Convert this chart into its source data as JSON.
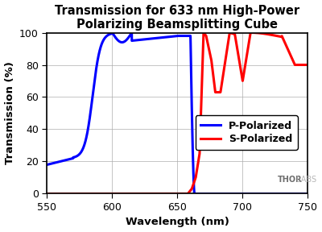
{
  "title": "Transmission for 633 nm High-Power\nPolarizing Beamsplitting Cube",
  "xlabel": "Wavelength (nm)",
  "ylabel": "Transmission (%)",
  "xlim": [
    550,
    750
  ],
  "ylim": [
    0,
    100
  ],
  "xticks": [
    550,
    600,
    650,
    700,
    750
  ],
  "yticks": [
    0,
    20,
    40,
    60,
    80,
    100
  ],
  "p_color": "#0000FF",
  "s_color": "#FF0000",
  "p_label": "P-Polarized",
  "s_label": "S-Polarized",
  "bg_color": "#FFFFFF",
  "plot_bg": "#FFFFFF",
  "grid_color": "#AAAAAA",
  "text_color": "#000000",
  "thorlabs_text": "THOR",
  "thorlabs_text2": "LABS",
  "title_fontsize": 10.5,
  "axis_fontsize": 9.5,
  "tick_fontsize": 9,
  "legend_fontsize": 9,
  "linewidth": 2.2
}
